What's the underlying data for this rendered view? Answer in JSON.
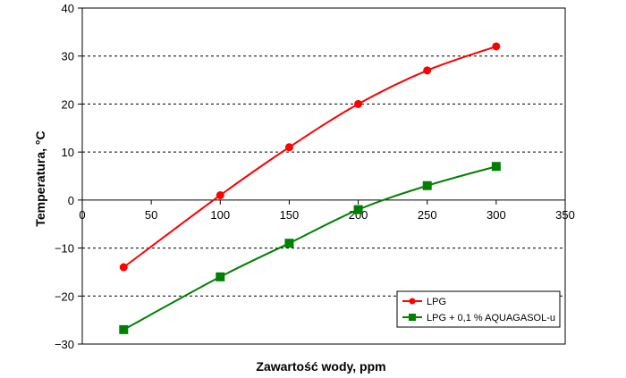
{
  "chart_data": {
    "type": "line",
    "title": "",
    "xlabel": "Zawartość wody, ppm",
    "ylabel": "Temperatura, °C",
    "xlim": [
      0,
      350
    ],
    "ylim": [
      -30,
      40
    ],
    "xticks": [
      0,
      50,
      100,
      150,
      200,
      250,
      300,
      350
    ],
    "yticks": [
      -30,
      -20,
      -10,
      0,
      10,
      20,
      30,
      40
    ],
    "xtick_labels": [
      "0",
      "50",
      "100",
      "150",
      "200",
      "250",
      "300",
      "350"
    ],
    "ytick_labels": [
      "−30",
      "−20",
      "−10",
      "0",
      "10",
      "20",
      "30",
      "40"
    ],
    "grid": "horizontal dashed",
    "legend_position": "bottom-right",
    "series": [
      {
        "name": "LPG",
        "color": "#ff0000",
        "marker": "circle",
        "x": [
          30,
          100,
          150,
          200,
          250,
          300
        ],
        "y": [
          -14,
          1,
          11,
          20,
          27,
          32
        ]
      },
      {
        "name": "LPG + 0,1 % AQUAGASOL-u",
        "color": "#008000",
        "marker": "square",
        "x": [
          30,
          100,
          150,
          200,
          250,
          300
        ],
        "y": [
          -27,
          -16,
          -9,
          -2,
          3,
          7
        ]
      }
    ]
  }
}
